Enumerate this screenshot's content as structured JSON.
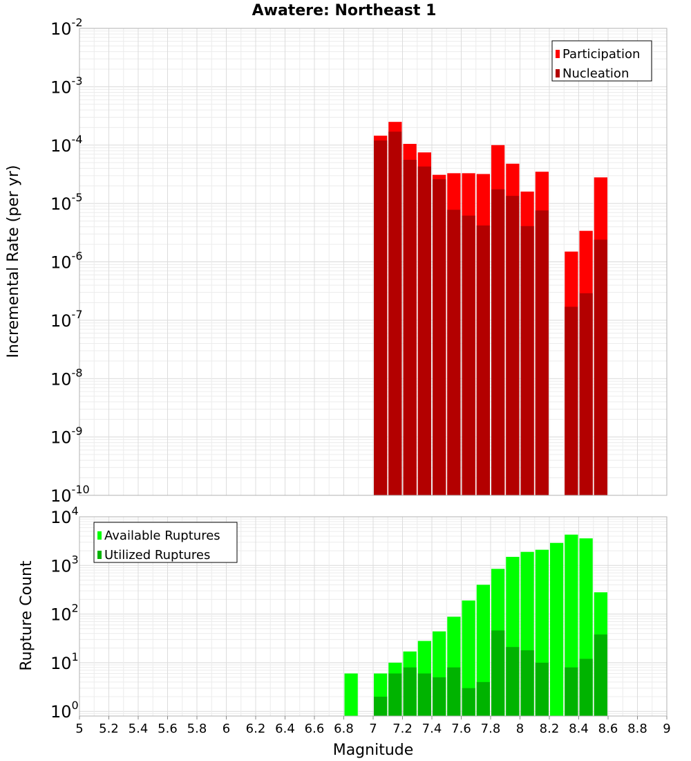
{
  "chart_data": [
    {
      "type": "bar",
      "title": "Awatere: Northeast 1",
      "xlabel": "",
      "ylabel": "Incremental Rate (per yr)",
      "yscale": "log",
      "ylim": [
        1e-10,
        0.01
      ],
      "xlim": [
        5,
        9
      ],
      "bar_width": 0.1,
      "grid": true,
      "legend_position": "top-right",
      "y_ticks": [
        {
          "base": "10",
          "exp": "-10"
        },
        {
          "base": "10",
          "exp": "-9"
        },
        {
          "base": "10",
          "exp": "-8"
        },
        {
          "base": "10",
          "exp": "-7"
        },
        {
          "base": "10",
          "exp": "-6"
        },
        {
          "base": "10",
          "exp": "-5"
        },
        {
          "base": "10",
          "exp": "-4"
        },
        {
          "base": "10",
          "exp": "-3"
        },
        {
          "base": "10",
          "exp": "-2"
        }
      ],
      "series": [
        {
          "name": "Participation",
          "color": "#ff0000",
          "points": [
            [
              7.0,
              0.000145
            ],
            [
              7.1,
              0.00025
            ],
            [
              7.2,
              0.000105
            ],
            [
              7.3,
              7.5e-05
            ],
            [
              7.4,
              3.1e-05
            ],
            [
              7.5,
              3.3e-05
            ],
            [
              7.6,
              3.3e-05
            ],
            [
              7.7,
              3.2e-05
            ],
            [
              7.8,
              0.0001
            ],
            [
              7.9,
              4.8e-05
            ],
            [
              8.0,
              1.6e-05
            ],
            [
              8.1,
              3.5e-05
            ],
            [
              8.3,
              1.5e-06
            ],
            [
              8.4,
              3.4e-06
            ],
            [
              8.5,
              2.8e-05
            ]
          ]
        },
        {
          "name": "Nucleation",
          "color": "#b30000",
          "points": [
            [
              7.0,
              0.00012
            ],
            [
              7.1,
              0.00017
            ],
            [
              7.2,
              5.6e-05
            ],
            [
              7.3,
              4.3e-05
            ],
            [
              7.4,
              2.6e-05
            ],
            [
              7.5,
              7.8e-06
            ],
            [
              7.6,
              6.2e-06
            ],
            [
              7.7,
              4.2e-06
            ],
            [
              7.8,
              1.75e-05
            ],
            [
              7.9,
              1.35e-05
            ],
            [
              8.0,
              4.1e-06
            ],
            [
              8.1,
              7.6e-06
            ],
            [
              8.3,
              1.7e-07
            ],
            [
              8.4,
              2.9e-07
            ],
            [
              8.5,
              2.4e-06
            ]
          ]
        }
      ]
    },
    {
      "type": "bar",
      "title": "",
      "xlabel": "Magnitude",
      "ylabel": "Rupture Count",
      "yscale": "log",
      "ylim": [
        0.8,
        10000
      ],
      "xlim": [
        5,
        9
      ],
      "bar_width": 0.1,
      "grid": true,
      "legend_position": "top-left",
      "x_ticks": [
        "5",
        "5.2",
        "5.4",
        "5.6",
        "5.8",
        "6",
        "6.2",
        "6.4",
        "6.6",
        "6.8",
        "7",
        "7.2",
        "7.4",
        "7.6",
        "7.8",
        "8",
        "8.2",
        "8.4",
        "8.6",
        "8.8",
        "9"
      ],
      "y_ticks": [
        {
          "base": "10",
          "exp": "0"
        },
        {
          "base": "10",
          "exp": "1"
        },
        {
          "base": "10",
          "exp": "2"
        },
        {
          "base": "10",
          "exp": "3"
        },
        {
          "base": "10",
          "exp": "4"
        }
      ],
      "series": [
        {
          "name": "Available Ruptures",
          "color": "#00ff00",
          "points": [
            [
              6.8,
              6
            ],
            [
              7.0,
              6
            ],
            [
              7.1,
              10
            ],
            [
              7.2,
              17
            ],
            [
              7.3,
              28
            ],
            [
              7.4,
              44
            ],
            [
              7.5,
              88
            ],
            [
              7.6,
              190
            ],
            [
              7.7,
              400
            ],
            [
              7.8,
              850
            ],
            [
              7.9,
              1500
            ],
            [
              8.0,
              1900
            ],
            [
              8.1,
              2100
            ],
            [
              8.2,
              2900
            ],
            [
              8.3,
              4300
            ],
            [
              8.4,
              3600
            ],
            [
              8.5,
              280
            ]
          ]
        },
        {
          "name": "Utilized Ruptures",
          "color": "#00b300",
          "points": [
            [
              7.0,
              2
            ],
            [
              7.1,
              6
            ],
            [
              7.2,
              8
            ],
            [
              7.3,
              6
            ],
            [
              7.4,
              5
            ],
            [
              7.5,
              8
            ],
            [
              7.6,
              3
            ],
            [
              7.7,
              4
            ],
            [
              7.8,
              46
            ],
            [
              7.9,
              21
            ],
            [
              8.0,
              18
            ],
            [
              8.1,
              10
            ],
            [
              8.3,
              8
            ],
            [
              8.4,
              12
            ],
            [
              8.5,
              38
            ]
          ]
        }
      ]
    }
  ]
}
